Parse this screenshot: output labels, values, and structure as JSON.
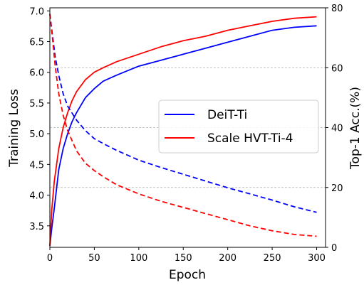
{
  "chart_data": {
    "type": "line",
    "title": "",
    "xlabel": "Epoch",
    "ylabel_left": "Training Loss",
    "ylabel_right": "Top-1 Acc.(%)",
    "xlim": [
      0,
      310
    ],
    "ylim_left": [
      3.15,
      7.05
    ],
    "ylim_right": [
      0,
      80
    ],
    "x_ticks": [
      0,
      50,
      100,
      150,
      200,
      250,
      300
    ],
    "y_left_ticks": [
      "3.5",
      "4.0",
      "4.5",
      "5.0",
      "5.5",
      "6.0",
      "6.5",
      "7.0"
    ],
    "y_right_ticks": [
      0,
      20,
      40,
      60,
      80
    ],
    "grid": "horizontal dashed at right-axis ticks",
    "legend_position": "center-right",
    "legend": [
      "DeiT-Ti",
      "Scale HVT-Ti-4"
    ],
    "colors": {
      "DeiT-Ti": "#0000ff",
      "Scale HVT-Ti-4": "#ff0000",
      "grid": "#b0b0b0"
    },
    "series": [
      {
        "name": "DeiT-Ti",
        "metric": "Top-1 Acc.(%)",
        "axis": "right",
        "style": "solid",
        "color": "#0000ff",
        "x": [
          0,
          2,
          5,
          10,
          15,
          20,
          25,
          30,
          40,
          50,
          60,
          75,
          100,
          125,
          150,
          175,
          200,
          225,
          250,
          275,
          300
        ],
        "y": [
          0.5,
          6,
          13,
          26,
          33,
          38,
          42,
          45,
          50,
          53,
          55.5,
          57.5,
          60.5,
          62.5,
          64.5,
          66.5,
          68.5,
          70.5,
          72.5,
          73.5,
          74
        ]
      },
      {
        "name": "Scale HVT-Ti-4",
        "metric": "Top-1 Acc.(%)",
        "axis": "right",
        "style": "solid",
        "color": "#ff0000",
        "x": [
          0,
          2,
          5,
          10,
          15,
          20,
          25,
          30,
          40,
          50,
          60,
          75,
          100,
          125,
          150,
          175,
          200,
          225,
          250,
          275,
          300
        ],
        "y": [
          0.5,
          12,
          22,
          33,
          40,
          45,
          49,
          52,
          56,
          58.5,
          60,
          62,
          64.5,
          67,
          69,
          70.5,
          72.5,
          74,
          75.5,
          76.5,
          77
        ]
      },
      {
        "name": "DeiT-Ti",
        "metric": "Training Loss",
        "axis": "left",
        "style": "dashed",
        "color": "#0000ff",
        "x": [
          0,
          3,
          6,
          10,
          15,
          20,
          30,
          40,
          50,
          60,
          75,
          100,
          125,
          150,
          175,
          200,
          225,
          250,
          275,
          300
        ],
        "y": [
          6.95,
          6.6,
          6.25,
          5.95,
          5.65,
          5.45,
          5.22,
          5.05,
          4.92,
          4.84,
          4.73,
          4.57,
          4.45,
          4.34,
          4.23,
          4.12,
          4.02,
          3.92,
          3.81,
          3.72
        ]
      },
      {
        "name": "Scale HVT-Ti-4",
        "metric": "Training Loss",
        "axis": "left",
        "style": "dashed",
        "color": "#ff0000",
        "x": [
          0,
          3,
          6,
          10,
          15,
          20,
          30,
          40,
          50,
          60,
          75,
          100,
          125,
          150,
          175,
          200,
          225,
          250,
          275,
          300
        ],
        "y": [
          6.95,
          6.55,
          6.1,
          5.65,
          5.3,
          5.05,
          4.72,
          4.52,
          4.4,
          4.3,
          4.17,
          4.02,
          3.9,
          3.8,
          3.7,
          3.6,
          3.5,
          3.42,
          3.36,
          3.33
        ]
      }
    ]
  }
}
